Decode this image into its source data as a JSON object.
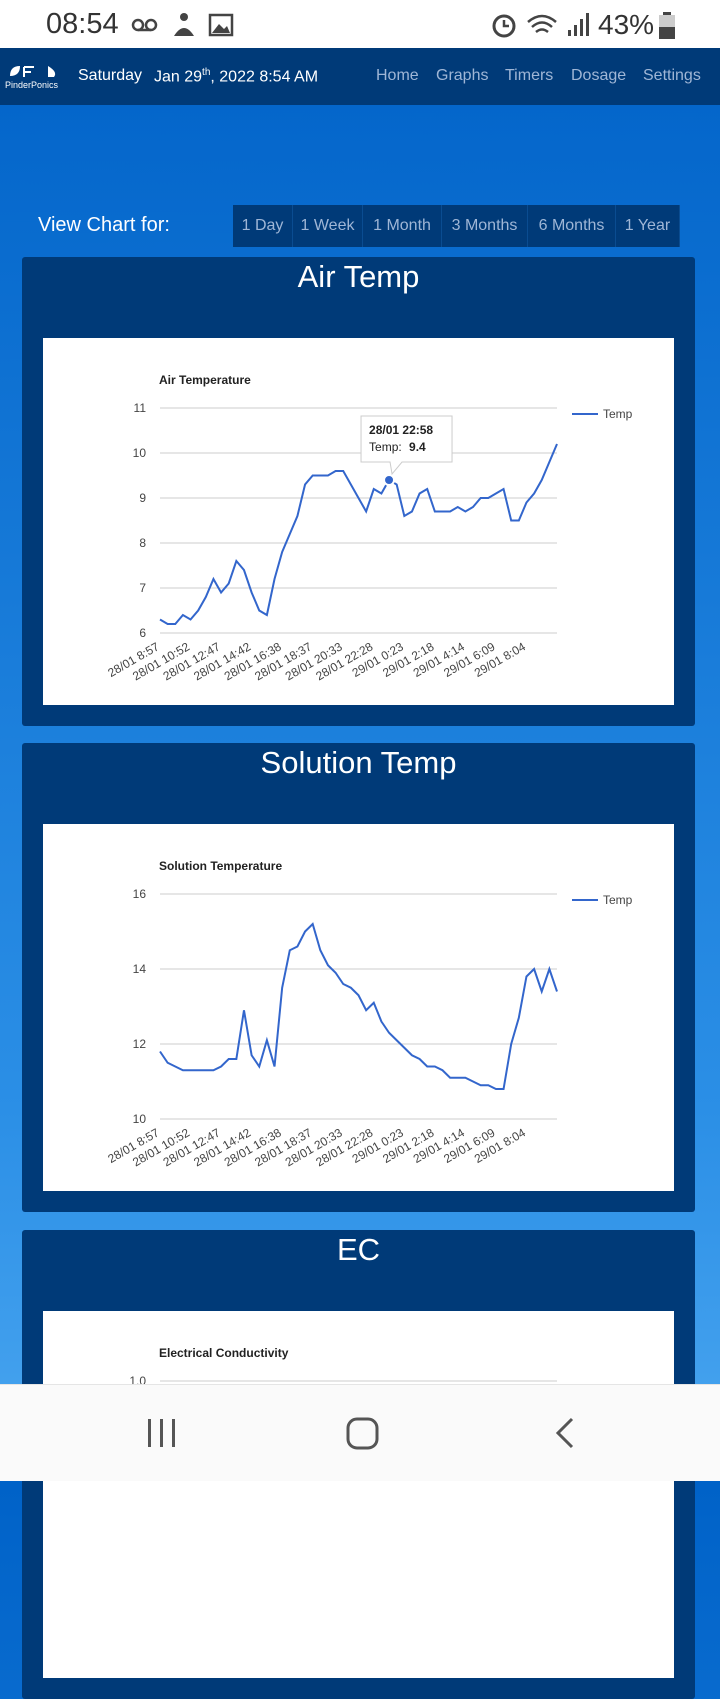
{
  "status_bar": {
    "time": "08:54",
    "battery": "43%"
  },
  "nav": {
    "brand": "PinderPonics",
    "weekday": "Saturday",
    "date": "Jan 29",
    "date_suffix": "th",
    "date_rest": ", 2022 8:54 AM",
    "links": [
      "Home",
      "Graphs",
      "Timers",
      "Dosage",
      "Settings"
    ]
  },
  "range": {
    "label": "View Chart for:",
    "options": [
      "1 Day",
      "1 Week",
      "1 Month",
      "3 Months",
      "6 Months",
      "1 Year"
    ]
  },
  "panels": [
    "Air Temp",
    "Solution Temp",
    "EC"
  ],
  "chart_data": [
    {
      "type": "line",
      "title": "Air Temperature",
      "categories": [
        "28/01 8:57",
        null,
        null,
        null,
        "28/01 10:52",
        null,
        null,
        null,
        "28/01 12:47",
        null,
        null,
        null,
        "28/01 14:42",
        null,
        null,
        null,
        "28/01 16:38",
        null,
        null,
        null,
        "28/01 18:37",
        null,
        null,
        null,
        "28/01 20:33",
        null,
        null,
        null,
        "28/01 22:28",
        null,
        null,
        null,
        "29/01 0:23",
        null,
        null,
        null,
        "29/01 2:18",
        null,
        null,
        null,
        "29/01 4:14",
        null,
        null,
        null,
        "29/01 6:09",
        null,
        null,
        null,
        "29/01 8:04",
        null,
        null,
        null,
        null
      ],
      "series": [
        {
          "name": "Temp",
          "color": "#3366cc",
          "values": [
            6.3,
            6.2,
            6.2,
            6.4,
            6.3,
            6.5,
            6.8,
            7.2,
            6.9,
            7.1,
            7.6,
            7.4,
            6.9,
            6.5,
            6.4,
            7.2,
            7.8,
            8.2,
            8.6,
            9.3,
            9.5,
            9.5,
            9.5,
            9.6,
            9.6,
            9.3,
            9.0,
            8.7,
            9.2,
            9.1,
            9.4,
            9.3,
            8.6,
            8.7,
            9.1,
            9.2,
            8.7,
            8.7,
            8.7,
            8.8,
            8.7,
            8.8,
            9.0,
            9.0,
            9.1,
            9.2,
            8.5,
            8.5,
            8.9,
            9.1,
            9.4,
            9.8,
            10.2
          ]
        }
      ],
      "ylim": [
        6,
        11
      ],
      "yticks": [
        6,
        7,
        8,
        9,
        10,
        11
      ],
      "grid": true,
      "legend": "right",
      "tooltip": {
        "title": "28/01 22:58",
        "text": "Temp:",
        "value": 9.4
      }
    },
    {
      "type": "line",
      "title": "Solution Temperature",
      "categories": [
        "28/01 8:57",
        null,
        null,
        null,
        "28/01 10:52",
        null,
        null,
        null,
        "28/01 12:47",
        null,
        null,
        null,
        "28/01 14:42",
        null,
        null,
        null,
        "28/01 16:38",
        null,
        null,
        null,
        "28/01 18:37",
        null,
        null,
        null,
        "28/01 20:33",
        null,
        null,
        null,
        "28/01 22:28",
        null,
        null,
        null,
        "29/01 0:23",
        null,
        null,
        null,
        "29/01 2:18",
        null,
        null,
        null,
        "29/01 4:14",
        null,
        null,
        null,
        "29/01 6:09",
        null,
        null,
        null,
        "29/01 8:04",
        null,
        null,
        null,
        null
      ],
      "series": [
        {
          "name": "Temp",
          "color": "#3366cc",
          "values": [
            11.8,
            11.5,
            11.4,
            11.3,
            11.3,
            11.3,
            11.3,
            11.3,
            11.4,
            11.6,
            11.6,
            12.9,
            11.7,
            11.4,
            12.1,
            11.4,
            13.5,
            14.5,
            14.6,
            15.0,
            15.2,
            14.5,
            14.1,
            13.9,
            13.6,
            13.5,
            13.3,
            12.9,
            13.1,
            12.6,
            12.3,
            12.1,
            11.9,
            11.7,
            11.6,
            11.4,
            11.4,
            11.3,
            11.1,
            11.1,
            11.1,
            11.0,
            10.9,
            10.9,
            10.8,
            10.8,
            12.0,
            12.7,
            13.8,
            14.0,
            13.4,
            14.0,
            13.4
          ]
        }
      ],
      "ylim": [
        10,
        16
      ],
      "yticks": [
        10,
        12,
        14,
        16
      ],
      "grid": true,
      "legend": "right"
    },
    {
      "type": "line",
      "title": "Electrical Conductivity",
      "yticks": [
        {
          "value": 1,
          "label": "1.0"
        }
      ],
      "grid": true
    }
  ]
}
